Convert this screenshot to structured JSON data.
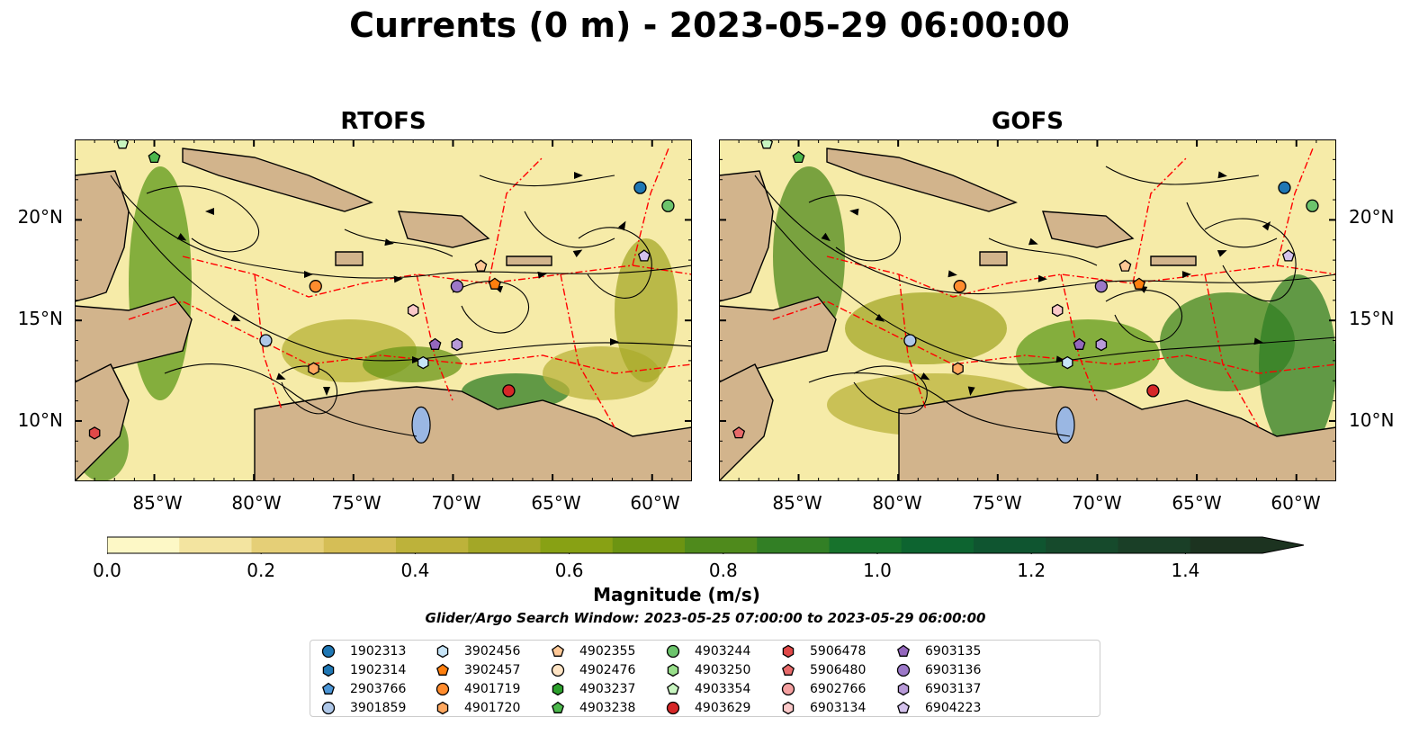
{
  "title": "Currents (0 m) - 2023-05-29 06:00:00",
  "panels": [
    {
      "id": "rtofs",
      "title": "RTOFS"
    },
    {
      "id": "gofs",
      "title": "GOFS"
    }
  ],
  "map": {
    "lon_range": [
      -89,
      -58
    ],
    "lat_range": [
      7,
      24
    ],
    "lon_ticks": [
      "85°W",
      "80°W",
      "75°W",
      "70°W",
      "65°W",
      "60°W"
    ],
    "lat_ticks": [
      "20°N",
      "15°N",
      "10°N"
    ],
    "colors": {
      "land": "#d2b48c",
      "lake": "#9ab7e3",
      "eez_line": "#ff0000",
      "streamline": "#000000"
    }
  },
  "colorbar": {
    "label": "Magnitude (m/s)",
    "min": 0.0,
    "max": 1.5,
    "extend": "max",
    "ticks": [
      "0.0",
      "0.2",
      "0.4",
      "0.6",
      "0.8",
      "1.0",
      "1.2",
      "1.4"
    ],
    "colors": [
      "#fdf8c6",
      "#f3e4a0",
      "#e5cf77",
      "#d5be56",
      "#bdb23a",
      "#a3a727",
      "#88a114",
      "#6c9412",
      "#4f8a1c",
      "#327f25",
      "#17722c",
      "#0d6430",
      "#0f5530",
      "#164a2c",
      "#1a3f27",
      "#1c3320"
    ]
  },
  "search_window": "Glider/Argo Search Window: 2023-05-25 07:00:00 to 2023-05-29 06:00:00",
  "platforms": [
    {
      "id": "1902313",
      "marker": "circle",
      "color": "#1f77b4",
      "lon": -60.6,
      "lat": 21.6
    },
    {
      "id": "1902314",
      "marker": "hexagon",
      "color": "#1f77b4"
    },
    {
      "id": "2903766",
      "marker": "pentagon",
      "color": "#4c96d7"
    },
    {
      "id": "3901859",
      "marker": "circle",
      "color": "#aec7e8",
      "lon": -79.4,
      "lat": 14.0
    },
    {
      "id": "3902456",
      "marker": "hexagon",
      "color": "#c6e4f7",
      "lon": -71.5,
      "lat": 12.9
    },
    {
      "id": "3902457",
      "marker": "pentagon",
      "color": "#ff7f0e",
      "lon": -67.9,
      "lat": 16.8
    },
    {
      "id": "4901719",
      "marker": "circle",
      "color": "#ff8c2e",
      "lon": -76.9,
      "lat": 16.7
    },
    {
      "id": "4901720",
      "marker": "hexagon",
      "color": "#ffa860",
      "lon": -77.0,
      "lat": 12.6
    },
    {
      "id": "4902355",
      "marker": "pentagon",
      "color": "#ffc896",
      "lon": -68.6,
      "lat": 17.7
    },
    {
      "id": "4902476",
      "marker": "circle",
      "color": "#ffe4c4"
    },
    {
      "id": "4903237",
      "marker": "hexagon",
      "color": "#2ca02c"
    },
    {
      "id": "4903238",
      "marker": "pentagon",
      "color": "#4cb84c",
      "lon": -85.0,
      "lat": 23.1
    },
    {
      "id": "4903244",
      "marker": "circle",
      "color": "#6cc46c",
      "lon": -59.2,
      "lat": 20.7
    },
    {
      "id": "4903250",
      "marker": "hexagon",
      "color": "#98df8a"
    },
    {
      "id": "4903354",
      "marker": "pentagon",
      "color": "#c8f5c0",
      "lon": -86.6,
      "lat": 23.8
    },
    {
      "id": "4903629",
      "marker": "circle",
      "color": "#d62728",
      "lon": -67.2,
      "lat": 11.5
    },
    {
      "id": "5906478",
      "marker": "hexagon",
      "color": "#e04848",
      "lon": -88.0,
      "lat": 9.4
    },
    {
      "id": "5906480",
      "marker": "pentagon",
      "color": "#e86a6a"
    },
    {
      "id": "6902766",
      "marker": "circle",
      "color": "#f4a0a0"
    },
    {
      "id": "6903134",
      "marker": "hexagon",
      "color": "#fbc9c9",
      "lon": -72.0,
      "lat": 15.5
    },
    {
      "id": "6903135",
      "marker": "pentagon",
      "color": "#9467bd",
      "lon": -70.9,
      "lat": 13.8
    },
    {
      "id": "6903136",
      "marker": "circle",
      "color": "#9c78c8",
      "lon": -69.8,
      "lat": 16.7
    },
    {
      "id": "6903137",
      "marker": "hexagon",
      "color": "#b89ad8",
      "lon": -69.8,
      "lat": 13.8
    },
    {
      "id": "6904223",
      "marker": "pentagon",
      "color": "#d4c2ec",
      "lon": -60.4,
      "lat": 18.2
    }
  ]
}
